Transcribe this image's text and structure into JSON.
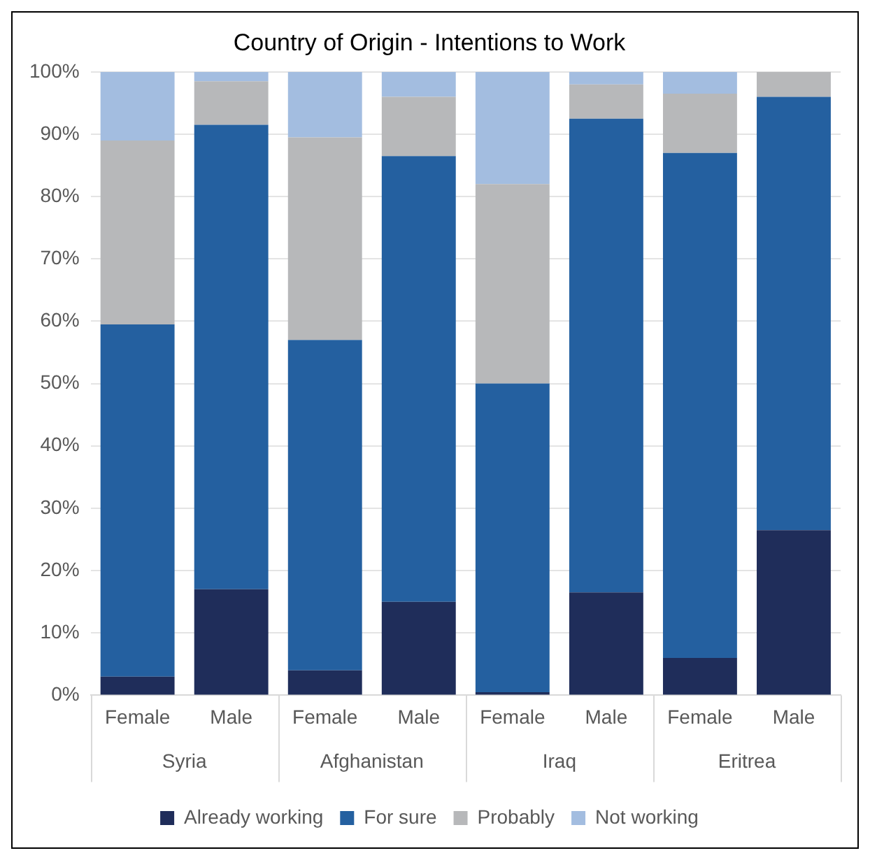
{
  "chart_data": {
    "type": "bar",
    "title": "Country of Origin - Intentions to Work",
    "categories": [
      "Female",
      "Male",
      "Female",
      "Male",
      "Female",
      "Male",
      "Female",
      "Male"
    ],
    "annotations": [
      "Syria",
      "Afghanistan",
      "Iraq",
      "Eritrea"
    ],
    "stacked": true,
    "series": [
      {
        "name": "Already working",
        "color": "#1f2d5a",
        "values": [
          3,
          17,
          4,
          15,
          0.5,
          16.5,
          6,
          26.5
        ]
      },
      {
        "name": "For sure",
        "color": "#2460a0",
        "values": [
          56.5,
          74.5,
          53,
          71.5,
          49.5,
          76,
          81,
          69.5
        ]
      },
      {
        "name": "Probably",
        "color": "#b7b8ba",
        "values": [
          29.5,
          7,
          32.5,
          9.5,
          32,
          5.5,
          9.5,
          4
        ]
      },
      {
        "name": "Not working",
        "color": "#a3bde0",
        "values": [
          11,
          1.5,
          10.5,
          4,
          18,
          2,
          3.5,
          0
        ]
      }
    ],
    "ylim": [
      0,
      100
    ],
    "yticks": [
      {
        "value": 0,
        "label": "0%"
      },
      {
        "value": 10,
        "label": "10%"
      },
      {
        "value": 20,
        "label": "20%"
      },
      {
        "value": 30,
        "label": "30%"
      },
      {
        "value": 40,
        "label": "40%"
      },
      {
        "value": 50,
        "label": "50%"
      },
      {
        "value": 60,
        "label": "60%"
      },
      {
        "value": 70,
        "label": "70%"
      },
      {
        "value": 80,
        "label": "80%"
      },
      {
        "value": 90,
        "label": "90%"
      },
      {
        "value": 100,
        "label": "100%"
      }
    ],
    "grid": "y",
    "legend": "bottom"
  }
}
